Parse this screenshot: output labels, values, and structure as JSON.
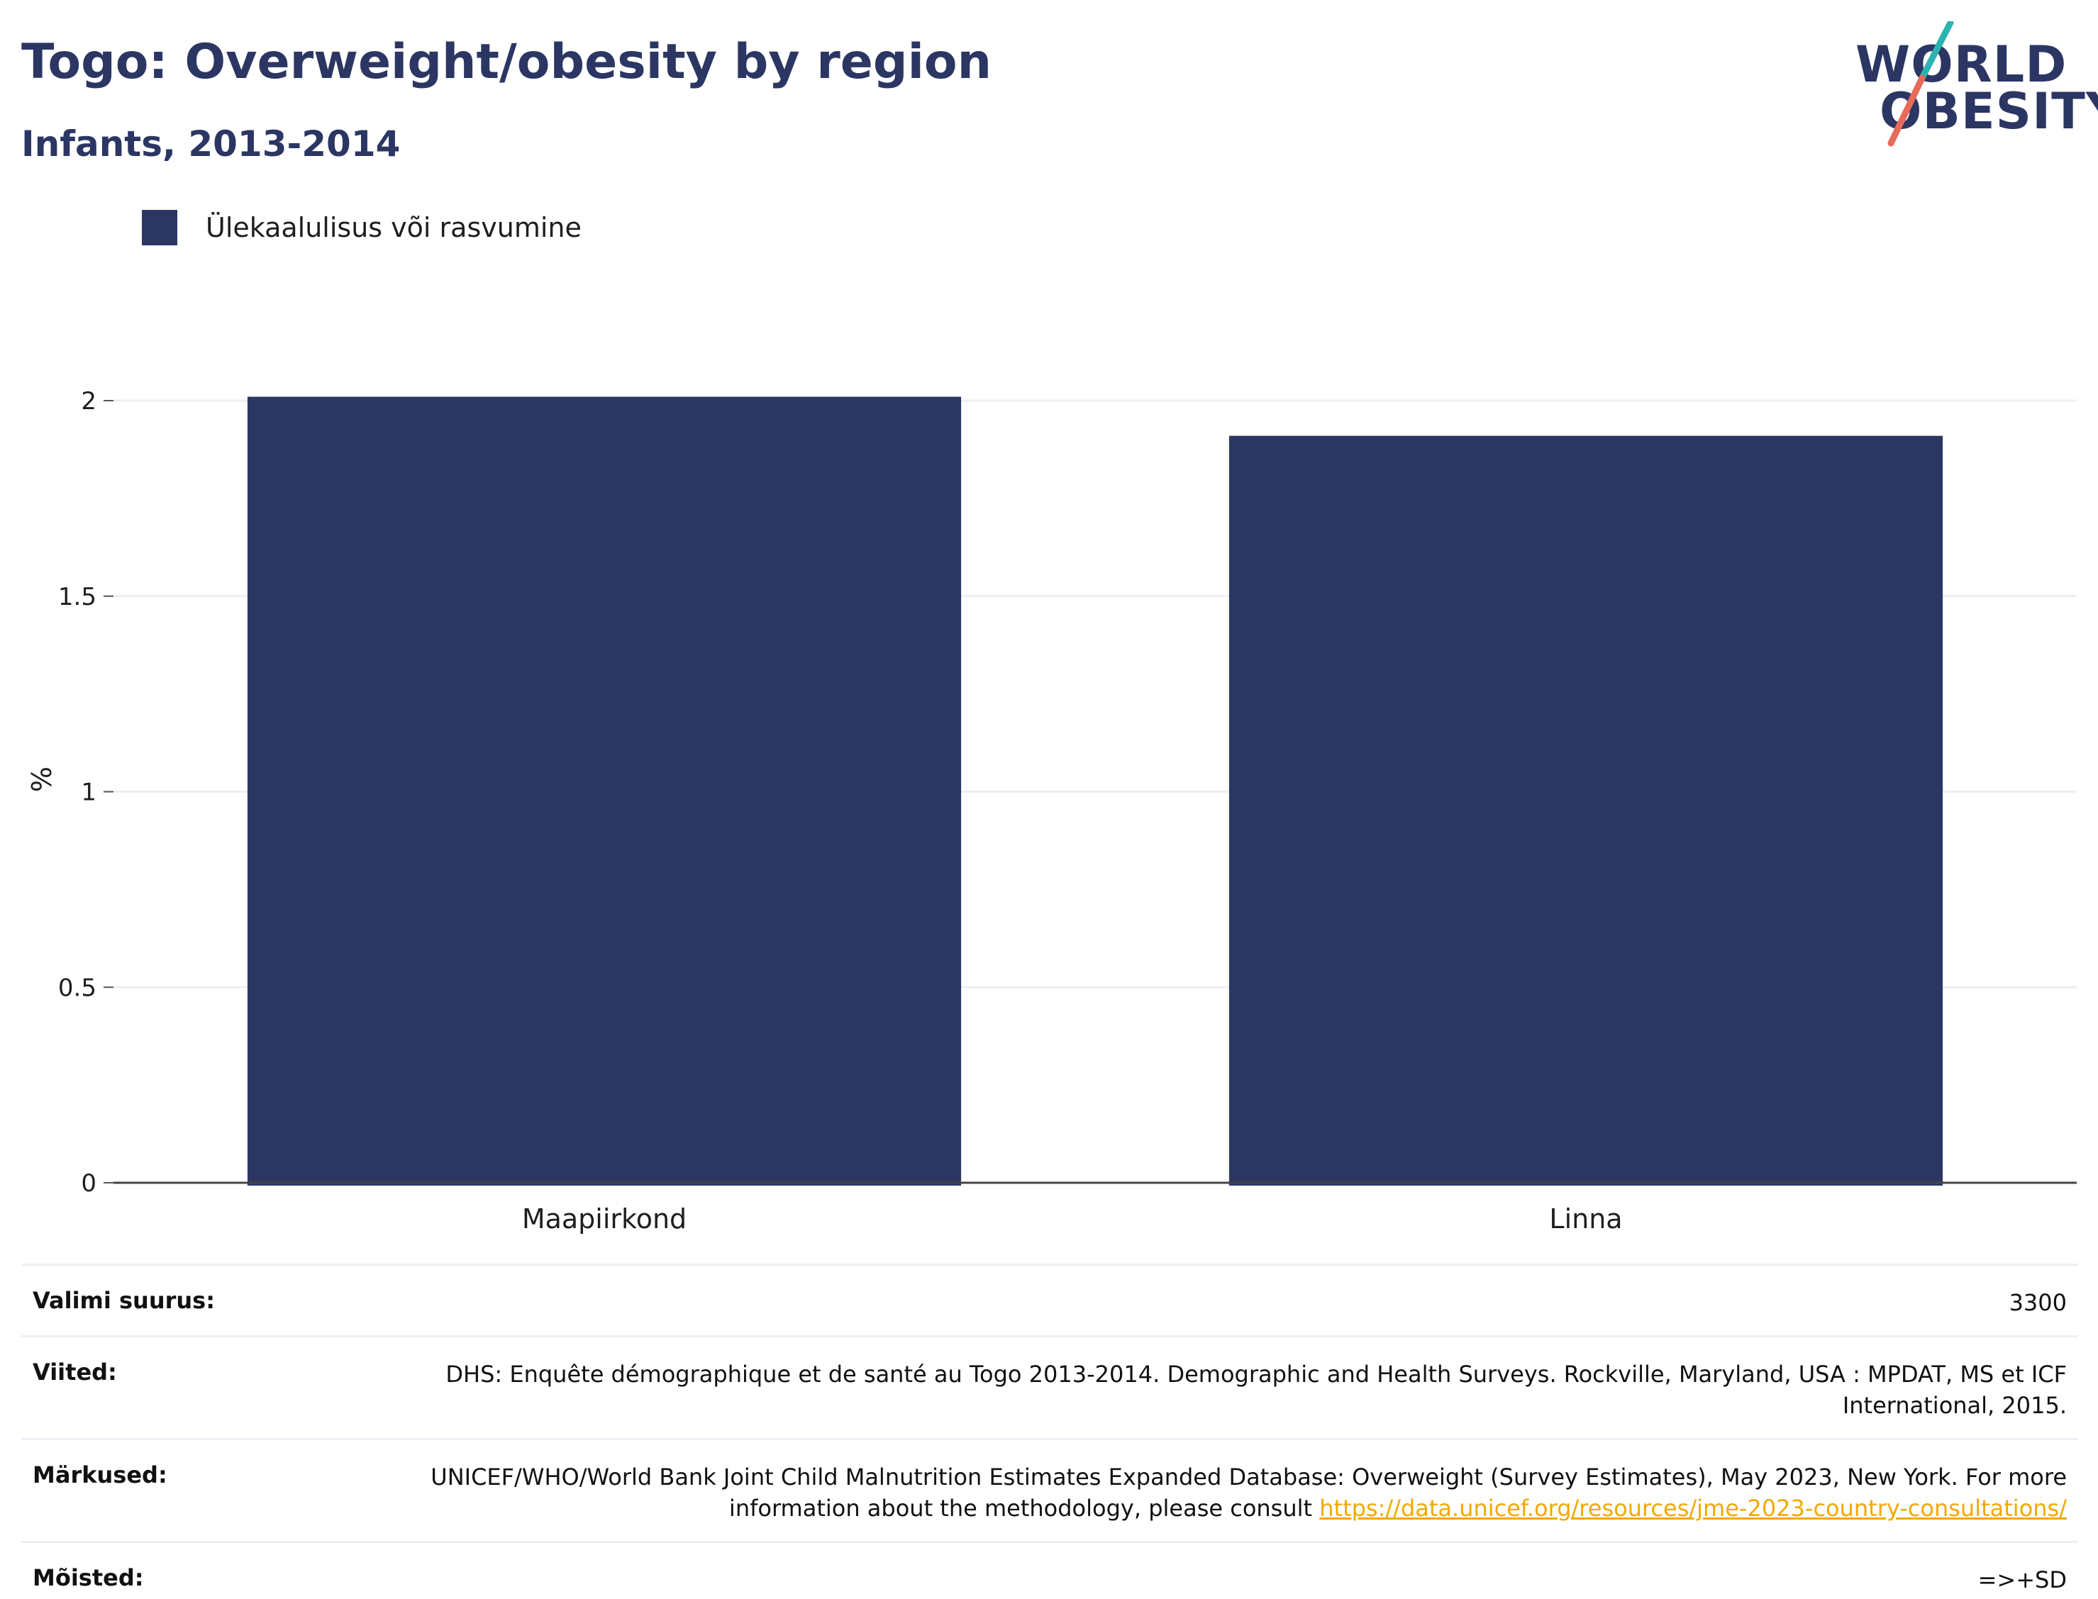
{
  "header": {
    "title": "Togo: Overweight/obesity by region",
    "subtitle": "Infants, 2013-2014"
  },
  "logo": {
    "line1": "WORLD",
    "line2": "OBESITY",
    "accent_teal": "#2ab3b1",
    "accent_coral": "#e86a5a"
  },
  "legend": {
    "label": "Ülekaalulisus või rasvumine",
    "color": "#2b3663"
  },
  "chart_data": {
    "type": "bar",
    "categories": [
      "Maapiirkond",
      "Linna"
    ],
    "series": [
      {
        "name": "Ülekaalulisus või rasvumine",
        "values": [
          2.01,
          1.91
        ],
        "color": "#2b3663"
      }
    ],
    "ylabel": "%",
    "xlabel": "",
    "ylim": [
      0,
      2
    ],
    "yticks": [
      0,
      0.5,
      1,
      1.5,
      2
    ],
    "ytick_labels": [
      "0",
      "0.5",
      "1",
      "1.5",
      "2"
    ],
    "grid": true,
    "legend_position": "top-left"
  },
  "info": {
    "sample_size": {
      "key": "Valimi suurus:",
      "value": "3300"
    },
    "references": {
      "key": "Viited:",
      "value": "DHS: Enquête démographique et de santé au Togo 2013-2014. Demographic and Health Surveys. Rockville, Maryland, USA : MPDAT, MS et ICF International, 2015."
    },
    "notes": {
      "key": "Märkused:",
      "value_text": "UNICEF/WHO/World Bank Joint Child Malnutrition Estimates Expanded Database: Overweight (Survey Estimates), May 2023, New York. For more information about the methodology, please consult ",
      "link": "https://data.unicef.org/resources/jme-2023-country-consultations/"
    },
    "definitions": {
      "key": "Mõisted:",
      "value": "=>+SD"
    }
  }
}
